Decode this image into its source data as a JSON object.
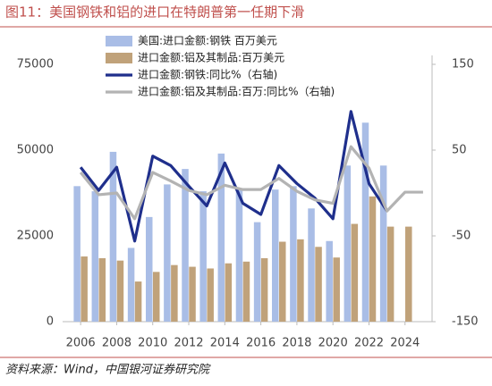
{
  "chart_data": {
    "type": "combo",
    "title": "图11：美国钢铁和铝的进口在特朗普第一任期下滑",
    "source": "资料来源：Wind，中国银河证券研究院",
    "x": [
      2006,
      2007,
      2008,
      2009,
      2010,
      2011,
      2012,
      2013,
      2014,
      2015,
      2016,
      2017,
      2018,
      2019,
      2020,
      2021,
      2022,
      2023,
      2024,
      2025
    ],
    "xlim": [
      2005,
      2025.5
    ],
    "xticks": [
      2006,
      2008,
      2010,
      2012,
      2014,
      2016,
      2018,
      2020,
      2022,
      2024
    ],
    "ylim": [
      0,
      75000
    ],
    "yticks": [
      0,
      25000,
      50000,
      75000
    ],
    "y2lim": [
      -150,
      150
    ],
    "y2ticks": [
      -150,
      -50,
      50,
      150
    ],
    "series": [
      {
        "name": "美国:进口金额:钢铁 百万美元",
        "type": "bar",
        "color": "#a9bde6",
        "values": [
          39500,
          38000,
          49500,
          21500,
          30500,
          40000,
          44500,
          38000,
          49000,
          38500,
          29000,
          38500,
          39500,
          33000,
          23500,
          45500,
          58000,
          45500,
          null,
          null
        ]
      },
      {
        "name": "进口金额:铝及其制品:百万美元",
        "type": "bar",
        "color": "#c0a27a",
        "values": [
          19000,
          18500,
          17800,
          11700,
          14500,
          16500,
          16000,
          15500,
          17000,
          17500,
          18500,
          23300,
          24000,
          21800,
          18700,
          28500,
          36500,
          27700,
          27700,
          null
        ]
      },
      {
        "name": "进口金额:钢铁:同比%（右轴)",
        "type": "line",
        "axis": "y2",
        "color": "#1f2f8c",
        "values": [
          30,
          3,
          30,
          -56,
          43,
          32,
          8,
          -15,
          35,
          -12,
          -25,
          32,
          11,
          -6,
          -30,
          95,
          11,
          -21,
          null,
          null
        ]
      },
      {
        "name": "进口金额:铝及其制品:百万:同比%（右轴)",
        "type": "line",
        "axis": "y2",
        "color": "#b3b3b3",
        "values": [
          24,
          -2,
          0,
          -30,
          24,
          14,
          3,
          -2,
          9,
          4,
          4,
          17,
          2,
          -8,
          -12,
          54,
          29,
          -21,
          1,
          1
        ]
      }
    ]
  }
}
